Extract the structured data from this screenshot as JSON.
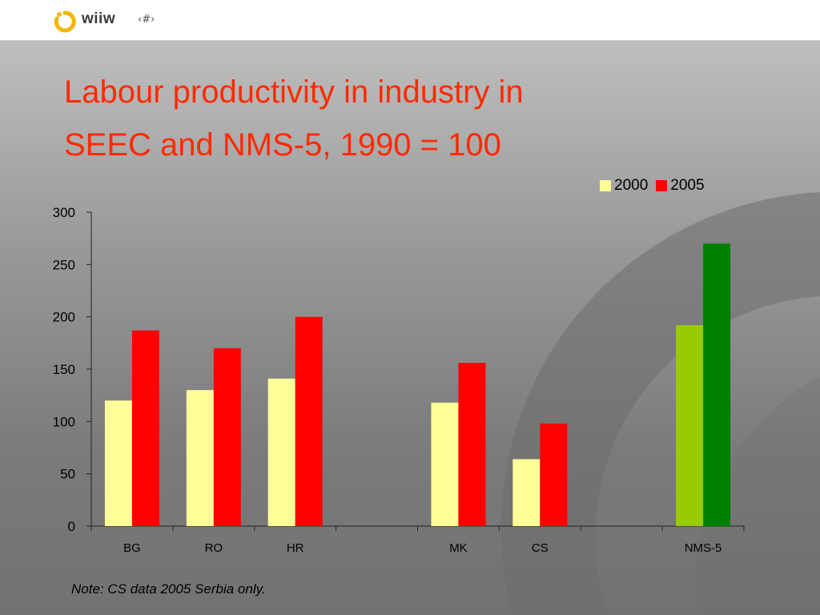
{
  "header": {
    "logo_text": "wiiw",
    "slide_number": "‹#›",
    "logo_colors": {
      "ring": "#f2b705",
      "dot": "#f2b705"
    }
  },
  "title": {
    "line1": "Labour productivity in industry in",
    "line2": "SEEC  and NMS-5, 1990 = 100"
  },
  "chart_data": {
    "type": "bar",
    "categories": [
      "BG",
      "RO",
      "HR",
      "",
      "MK",
      "CS",
      "",
      "NMS-5"
    ],
    "series": [
      {
        "name": "2000",
        "values": [
          120,
          130,
          141,
          null,
          118,
          64,
          null,
          192
        ]
      },
      {
        "name": "2005",
        "values": [
          187,
          170,
          200,
          null,
          156,
          98,
          null,
          270
        ]
      }
    ],
    "ylim": [
      0,
      300
    ],
    "yticks": [
      0,
      50,
      100,
      150,
      200,
      250,
      300
    ],
    "grid": false,
    "legend_position": "top-right",
    "colors": {
      "2000": "#ffff99",
      "2005": "#ff0000",
      "NMS-5 2000": "#99cc00",
      "NMS-5 2005": "#008000"
    }
  },
  "note": "Note: CS data 2005 Serbia only."
}
